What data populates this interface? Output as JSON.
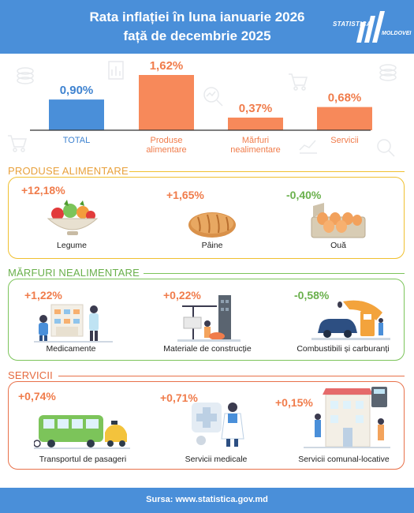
{
  "header": {
    "title_line1": "Rata inflației în luna ianuarie 2026",
    "title_line2": "față de decembrie 2025",
    "logo_line1": "STATISTICA",
    "logo_line2": "MOLDOVEI"
  },
  "chart_data": {
    "type": "bar",
    "categories": [
      "TOTAL",
      "Produse alimentare",
      "Mărfuri nealimentare",
      "Servicii"
    ],
    "category_lines": [
      [
        "TOTAL"
      ],
      [
        "Produse",
        "alimentare"
      ],
      [
        "Mărfuri",
        "nealimentare"
      ],
      [
        "Servicii"
      ]
    ],
    "values": [
      0.9,
      1.62,
      0.37,
      0.68
    ],
    "value_labels": [
      "0,90%",
      "1,62%",
      "0,37%",
      "0,68%"
    ],
    "colors": [
      "#4a8fd9",
      "#f7895a",
      "#f7895a",
      "#f7895a"
    ],
    "label_colors": [
      "#3f83d0",
      "#f07c4b",
      "#f07c4b",
      "#f07c4b"
    ],
    "title": "",
    "xlabel": "",
    "ylabel": "",
    "ylim": [
      0,
      1.62
    ],
    "grid": false
  },
  "sections": {
    "food": {
      "title": "PRODUSE ALIMENTARE",
      "color": "#e8a13c",
      "items": [
        {
          "value": "+12,18%",
          "label": "Legume",
          "icon": "vegetables-bowl-icon"
        },
        {
          "value": "+1,65%",
          "label": "Pâine",
          "icon": "bread-icon"
        },
        {
          "value": "-0,40%",
          "label": "Ouă",
          "icon": "eggs-carton-icon"
        }
      ]
    },
    "nonfood": {
      "title": "MĂRFURI NEALIMENTARE",
      "color": "#6ab04c",
      "items": [
        {
          "value": "+1,22%",
          "label": "Medicamente",
          "icon": "pharmacy-icon"
        },
        {
          "value": "+0,22%",
          "label": "Materiale de construcție",
          "icon": "construction-icon"
        },
        {
          "value": "-0,58%",
          "label": "Combustibili și carburanți",
          "icon": "fuel-station-icon"
        }
      ]
    },
    "services": {
      "title": "SERVICII",
      "color": "#e56a3f",
      "items": [
        {
          "value": "+0,74%",
          "label": "Transportul de pasageri",
          "icon": "bus-icon"
        },
        {
          "value": "+0,71%",
          "label": "Servicii medicale",
          "icon": "doctor-icon"
        },
        {
          "value": "+0,15%",
          "label": "Servicii comunal-locative",
          "icon": "utilities-icon"
        }
      ]
    }
  },
  "footer": {
    "text": "Sursa: www.statistica.gov.md"
  }
}
